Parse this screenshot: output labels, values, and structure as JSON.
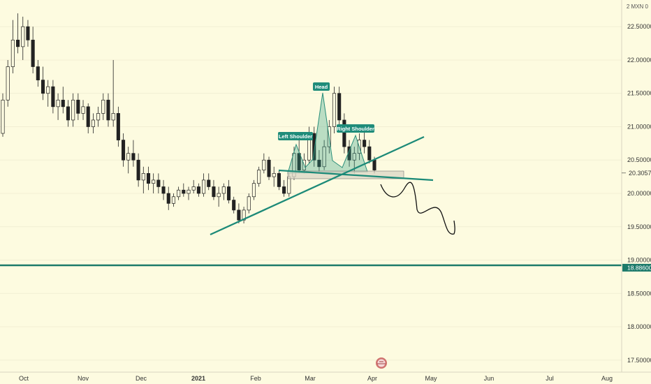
{
  "chart_data": {
    "type": "candlestick",
    "symbol_corner": "2 MXN 0",
    "y_ticks": [
      "22.50000",
      "22.00000",
      "21.50000",
      "21.00000",
      "20.50000",
      "20.00000",
      "19.50000",
      "19.00000",
      "18.50000",
      "18.00000",
      "17.50000"
    ],
    "y_tick_values": [
      22.5,
      22.0,
      21.5,
      21.0,
      20.5,
      20.0,
      19.5,
      19.0,
      18.5,
      18.0,
      17.5
    ],
    "ylim": [
      17.32,
      22.9
    ],
    "x_ticks": [
      "Oct",
      "Nov",
      "Dec",
      "2021",
      "Feb",
      "Mar",
      "Apr",
      "May",
      "Jun",
      "Jul",
      "Aug"
    ],
    "current_price": "20.30570",
    "current_price_value": 20.3057,
    "support_level": "18.88600",
    "support_level_value": 18.886,
    "annotations": {
      "head": "Head",
      "left_shoulder": "Left Shoulder",
      "right_shoulder": "Right Shoulder"
    },
    "series": [
      {
        "values": [
          [
            20.9,
            21.5,
            20.85,
            21.4
          ],
          [
            21.4,
            22.0,
            21.3,
            21.9
          ],
          [
            21.9,
            22.6,
            21.8,
            22.3
          ],
          [
            22.3,
            22.7,
            22.1,
            22.2
          ],
          [
            22.2,
            22.65,
            22.0,
            22.5
          ],
          [
            22.5,
            22.6,
            22.2,
            22.3
          ],
          [
            22.3,
            22.5,
            21.8,
            21.9
          ],
          [
            21.9,
            22.0,
            21.6,
            21.7
          ],
          [
            21.7,
            21.9,
            21.4,
            21.5
          ],
          [
            21.5,
            21.7,
            21.3,
            21.6
          ],
          [
            21.6,
            21.7,
            21.2,
            21.3
          ],
          [
            21.3,
            21.5,
            21.1,
            21.4
          ],
          [
            21.4,
            21.6,
            21.2,
            21.3
          ],
          [
            21.3,
            21.4,
            21.0,
            21.1
          ],
          [
            21.1,
            21.5,
            21.0,
            21.4
          ],
          [
            21.4,
            21.5,
            21.1,
            21.2
          ],
          [
            21.2,
            21.4,
            21.1,
            21.3
          ],
          [
            21.3,
            21.35,
            20.9,
            21.0
          ],
          [
            21.0,
            21.2,
            20.9,
            21.1
          ],
          [
            21.1,
            21.3,
            21.0,
            21.2
          ],
          [
            21.2,
            21.5,
            21.1,
            21.4
          ],
          [
            21.4,
            21.5,
            21.0,
            21.1
          ],
          [
            21.1,
            22.0,
            21.0,
            21.2
          ],
          [
            21.2,
            21.3,
            20.7,
            20.8
          ],
          [
            20.8,
            20.9,
            20.4,
            20.5
          ],
          [
            20.5,
            20.7,
            20.3,
            20.6
          ],
          [
            20.6,
            20.8,
            20.4,
            20.5
          ],
          [
            20.5,
            20.6,
            20.1,
            20.2
          ],
          [
            20.2,
            20.4,
            20.0,
            20.3
          ],
          [
            20.3,
            20.4,
            20.05,
            20.15
          ],
          [
            20.15,
            20.3,
            20.0,
            20.2
          ],
          [
            20.2,
            20.3,
            20.0,
            20.1
          ],
          [
            20.1,
            20.2,
            19.9,
            20.0
          ],
          [
            20.0,
            20.1,
            19.75,
            19.85
          ],
          [
            19.85,
            20.0,
            19.8,
            19.95
          ],
          [
            19.95,
            20.1,
            19.9,
            20.05
          ],
          [
            20.05,
            20.15,
            19.95,
            20.0
          ],
          [
            20.0,
            20.1,
            19.9,
            20.05
          ],
          [
            20.05,
            20.2,
            20.0,
            20.1
          ],
          [
            20.1,
            20.15,
            19.95,
            20.0
          ],
          [
            20.0,
            20.3,
            19.95,
            20.2
          ],
          [
            20.2,
            20.3,
            20.05,
            20.1
          ],
          [
            20.1,
            20.2,
            19.9,
            19.95
          ],
          [
            19.95,
            20.1,
            19.8,
            20.0
          ],
          [
            20.0,
            20.15,
            19.9,
            20.1
          ],
          [
            20.1,
            20.2,
            19.85,
            19.9
          ],
          [
            19.9,
            19.95,
            19.7,
            19.75
          ],
          [
            19.75,
            19.85,
            19.55,
            19.6
          ],
          [
            19.6,
            19.8,
            19.55,
            19.75
          ],
          [
            19.75,
            20.0,
            19.7,
            19.95
          ],
          [
            19.95,
            20.2,
            19.9,
            20.15
          ],
          [
            20.15,
            20.4,
            20.1,
            20.35
          ],
          [
            20.35,
            20.6,
            20.3,
            20.5
          ],
          [
            20.5,
            20.55,
            20.2,
            20.25
          ],
          [
            20.25,
            20.4,
            20.1,
            20.3
          ],
          [
            20.3,
            20.35,
            20.05,
            20.1
          ],
          [
            20.1,
            20.2,
            19.95,
            20.0
          ],
          [
            20.0,
            20.3,
            19.95,
            20.25
          ],
          [
            20.25,
            20.7,
            20.2,
            20.6
          ],
          [
            20.6,
            20.8,
            20.3,
            20.35
          ],
          [
            20.35,
            20.6,
            20.3,
            20.5
          ],
          [
            20.5,
            21.0,
            20.45,
            20.9
          ],
          [
            20.9,
            21.0,
            20.4,
            20.5
          ],
          [
            20.5,
            20.65,
            20.3,
            20.4
          ],
          [
            20.4,
            20.8,
            20.35,
            20.7
          ],
          [
            20.7,
            21.1,
            20.6,
            21.0
          ],
          [
            21.0,
            21.6,
            20.9,
            21.5
          ],
          [
            21.5,
            21.6,
            21.0,
            21.1
          ],
          [
            21.1,
            21.2,
            20.6,
            20.7
          ],
          [
            20.7,
            20.8,
            20.4,
            20.5
          ],
          [
            20.5,
            20.7,
            20.3,
            20.6
          ],
          [
            20.6,
            20.9,
            20.5,
            20.8
          ],
          [
            20.8,
            20.95,
            20.6,
            20.7
          ],
          [
            20.7,
            20.8,
            20.45,
            20.5
          ],
          [
            20.5,
            20.55,
            20.3,
            20.35
          ]
        ]
      }
    ]
  }
}
